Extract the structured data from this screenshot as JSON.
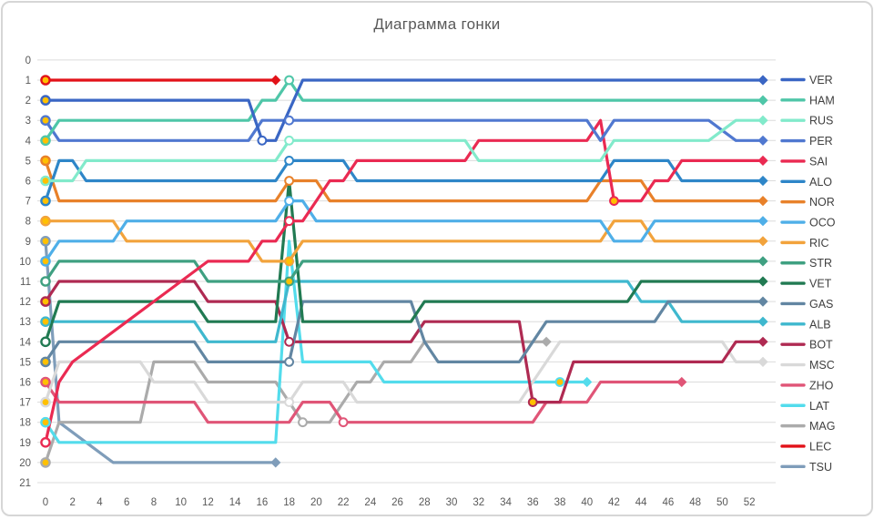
{
  "window": {
    "title": "Диаграмма гонки"
  },
  "chart_data": {
    "type": "line",
    "title": "Диаграмма гонки",
    "xlabel": "",
    "ylabel": "",
    "x_ticks": [
      0,
      2,
      4,
      6,
      8,
      10,
      12,
      14,
      16,
      18,
      20,
      22,
      24,
      26,
      28,
      30,
      32,
      34,
      36,
      38,
      40,
      42,
      44,
      46,
      48,
      50,
      52
    ],
    "y_ticks": [
      0,
      1,
      2,
      3,
      4,
      5,
      6,
      7,
      8,
      9,
      10,
      11,
      12,
      13,
      14,
      15,
      16,
      17,
      18,
      19,
      20,
      21
    ],
    "x_range": [
      0,
      53
    ],
    "y_range": [
      0,
      21
    ],
    "grid": "horizontal",
    "legend_position": "right",
    "y_inverted_meaning": "race position (1 = leader)",
    "marker_colors": {
      "tyre_yellow": "#FFC000",
      "tyre_white": "#FFFFFF"
    },
    "axis_text_color": "#595959",
    "legend_text_color": "#404040",
    "series": [
      {
        "name": "VER",
        "color": "#3A66C4",
        "start_fill": "#FFC000",
        "path": [
          [
            0,
            2
          ],
          [
            15,
            2
          ],
          [
            16,
            4
          ],
          [
            17,
            4
          ],
          [
            19,
            1
          ],
          [
            53,
            1
          ]
        ],
        "pits": [
          [
            16,
            4,
            "w"
          ]
        ],
        "end": [
          53,
          1
        ]
      },
      {
        "name": "HAM",
        "color": "#4FC6A8",
        "start_fill": "#FFC000",
        "path": [
          [
            0,
            4
          ],
          [
            1,
            3
          ],
          [
            15,
            3
          ],
          [
            16,
            2
          ],
          [
            17,
            2
          ],
          [
            18,
            1
          ],
          [
            19,
            2
          ],
          [
            53,
            2
          ]
        ],
        "pits": [
          [
            18,
            1,
            "w"
          ]
        ],
        "end": [
          53,
          2
        ]
      },
      {
        "name": "RUS",
        "color": "#82EACB",
        "start_fill": "#FFC000",
        "path": [
          [
            0,
            6
          ],
          [
            2,
            6
          ],
          [
            3,
            5
          ],
          [
            17,
            5
          ],
          [
            18,
            4
          ],
          [
            31,
            4
          ],
          [
            32,
            5
          ],
          [
            41,
            5
          ],
          [
            42,
            4
          ],
          [
            49,
            4
          ],
          [
            51,
            3
          ],
          [
            53,
            3
          ]
        ],
        "pits": [
          [
            18,
            4,
            "w"
          ]
        ],
        "end": [
          53,
          3
        ]
      },
      {
        "name": "PER",
        "color": "#5078D0",
        "start_fill": "#FFC000",
        "path": [
          [
            0,
            3
          ],
          [
            1,
            4
          ],
          [
            15,
            4
          ],
          [
            16,
            3
          ],
          [
            40,
            3
          ],
          [
            41,
            4
          ],
          [
            42,
            3
          ],
          [
            49,
            3
          ],
          [
            51,
            4
          ],
          [
            53,
            4
          ]
        ],
        "pits": [
          [
            18,
            3,
            "w"
          ]
        ],
        "end": [
          53,
          4
        ]
      },
      {
        "name": "SAI",
        "color": "#EA2A52",
        "start_fill": "#FFFFFF",
        "path": [
          [
            0,
            19
          ],
          [
            1,
            16
          ],
          [
            2,
            15
          ],
          [
            4,
            14
          ],
          [
            6,
            13
          ],
          [
            8,
            12
          ],
          [
            10,
            11
          ],
          [
            12,
            10
          ],
          [
            15,
            10
          ],
          [
            16,
            9
          ],
          [
            17,
            9
          ],
          [
            18,
            8
          ],
          [
            19,
            8
          ],
          [
            20,
            7
          ],
          [
            21,
            6
          ],
          [
            22,
            6
          ],
          [
            23,
            5
          ],
          [
            31,
            5
          ],
          [
            32,
            4
          ],
          [
            40,
            4
          ],
          [
            41,
            3
          ],
          [
            42,
            7
          ],
          [
            44,
            7
          ],
          [
            45,
            6
          ],
          [
            46,
            6
          ],
          [
            47,
            5
          ],
          [
            53,
            5
          ]
        ],
        "pits": [
          [
            18,
            8,
            "w"
          ],
          [
            42,
            7,
            "y"
          ]
        ],
        "end": [
          53,
          5
        ]
      },
      {
        "name": "ALO",
        "color": "#2E86C8",
        "start_fill": "#FFC000",
        "path": [
          [
            0,
            7
          ],
          [
            1,
            5
          ],
          [
            2,
            5
          ],
          [
            3,
            6
          ],
          [
            17,
            6
          ],
          [
            18,
            5
          ],
          [
            22,
            5
          ],
          [
            23,
            6
          ],
          [
            41,
            6
          ],
          [
            42,
            5
          ],
          [
            46,
            5
          ],
          [
            47,
            6
          ],
          [
            53,
            6
          ]
        ],
        "pits": [
          [
            18,
            5,
            "w"
          ]
        ],
        "end": [
          53,
          6
        ]
      },
      {
        "name": "NOR",
        "color": "#E8812A",
        "start_fill": "#FFC000",
        "path": [
          [
            0,
            5
          ],
          [
            1,
            7
          ],
          [
            17,
            7
          ],
          [
            18,
            6
          ],
          [
            20,
            6
          ],
          [
            21,
            7
          ],
          [
            40,
            7
          ],
          [
            41,
            6
          ],
          [
            44,
            6
          ],
          [
            45,
            7
          ],
          [
            53,
            7
          ]
        ],
        "pits": [
          [
            18,
            6,
            "w"
          ]
        ],
        "end": [
          53,
          7
        ]
      },
      {
        "name": "OCO",
        "color": "#4FAFE8",
        "start_fill": "#FFC000",
        "path": [
          [
            0,
            10
          ],
          [
            1,
            9
          ],
          [
            5,
            9
          ],
          [
            6,
            8
          ],
          [
            17,
            8
          ],
          [
            18,
            7
          ],
          [
            19,
            7
          ],
          [
            20,
            8
          ],
          [
            41,
            8
          ],
          [
            42,
            9
          ],
          [
            44,
            9
          ],
          [
            45,
            8
          ],
          [
            53,
            8
          ]
        ],
        "pits": [
          [
            18,
            7,
            "w"
          ]
        ],
        "end": [
          53,
          8
        ]
      },
      {
        "name": "RIC",
        "color": "#F2A33C",
        "start_fill": "#FFC000",
        "path": [
          [
            0,
            8
          ],
          [
            5,
            8
          ],
          [
            6,
            9
          ],
          [
            15,
            9
          ],
          [
            16,
            10
          ],
          [
            18,
            10
          ],
          [
            19,
            9
          ],
          [
            41,
            9
          ],
          [
            42,
            8
          ],
          [
            44,
            8
          ],
          [
            45,
            9
          ],
          [
            53,
            9
          ]
        ],
        "pits": [
          [
            18,
            10,
            "y"
          ]
        ],
        "end": [
          53,
          9
        ]
      },
      {
        "name": "STR",
        "color": "#3FA081",
        "start_fill": "#FFFFFF",
        "path": [
          [
            0,
            11
          ],
          [
            1,
            10
          ],
          [
            11,
            10
          ],
          [
            12,
            11
          ],
          [
            18,
            11
          ],
          [
            19,
            10
          ],
          [
            53,
            10
          ]
        ],
        "pits": [
          [
            18,
            11,
            "y"
          ]
        ],
        "end": [
          53,
          10
        ]
      },
      {
        "name": "VET",
        "color": "#217A52",
        "start_fill": "#FFFFFF",
        "path": [
          [
            0,
            14
          ],
          [
            1,
            12
          ],
          [
            11,
            12
          ],
          [
            12,
            13
          ],
          [
            17,
            13
          ],
          [
            18,
            6
          ],
          [
            19,
            13
          ],
          [
            27,
            13
          ],
          [
            28,
            12
          ],
          [
            43,
            12
          ],
          [
            44,
            11
          ],
          [
            53,
            11
          ]
        ],
        "pits": [],
        "end": [
          53,
          11
        ]
      },
      {
        "name": "GAS",
        "color": "#6286A2",
        "start_fill": "#FFC000",
        "path": [
          [
            0,
            15
          ],
          [
            1,
            14
          ],
          [
            11,
            14
          ],
          [
            12,
            15
          ],
          [
            18,
            15
          ],
          [
            19,
            12
          ],
          [
            27,
            12
          ],
          [
            28,
            14
          ],
          [
            29,
            15
          ],
          [
            35,
            15
          ],
          [
            37,
            13
          ],
          [
            45,
            13
          ],
          [
            46,
            12
          ],
          [
            53,
            12
          ]
        ],
        "pits": [
          [
            18,
            15,
            "w"
          ]
        ],
        "end": [
          53,
          12
        ]
      },
      {
        "name": "ALB",
        "color": "#3FB8CE",
        "start_fill": "#FFC000",
        "path": [
          [
            0,
            13
          ],
          [
            1,
            13
          ],
          [
            11,
            13
          ],
          [
            12,
            14
          ],
          [
            17,
            14
          ],
          [
            18,
            11
          ],
          [
            43,
            11
          ],
          [
            44,
            12
          ],
          [
            46,
            12
          ],
          [
            47,
            13
          ],
          [
            53,
            13
          ]
        ],
        "pits": [],
        "end": [
          53,
          13
        ]
      },
      {
        "name": "BOT",
        "color": "#AF2A52",
        "start_fill": "#FFC000",
        "path": [
          [
            0,
            12
          ],
          [
            1,
            11
          ],
          [
            11,
            11
          ],
          [
            12,
            12
          ],
          [
            17,
            12
          ],
          [
            18,
            14
          ],
          [
            27,
            14
          ],
          [
            28,
            13
          ],
          [
            35,
            13
          ],
          [
            36,
            17
          ],
          [
            38,
            17
          ],
          [
            39,
            15
          ],
          [
            50,
            15
          ],
          [
            51,
            14
          ],
          [
            53,
            14
          ]
        ],
        "pits": [
          [
            18,
            14,
            "w"
          ],
          [
            36,
            17,
            "y"
          ]
        ],
        "end": [
          53,
          14
        ]
      },
      {
        "name": "MSC",
        "color": "#D9D9D9",
        "start_fill": "#FFC000",
        "path": [
          [
            0,
            17
          ],
          [
            1,
            15
          ],
          [
            7,
            15
          ],
          [
            8,
            16
          ],
          [
            11,
            16
          ],
          [
            12,
            17
          ],
          [
            18,
            17
          ],
          [
            19,
            16
          ],
          [
            22,
            16
          ],
          [
            23,
            17
          ],
          [
            35,
            17
          ],
          [
            36,
            16
          ],
          [
            37,
            15
          ],
          [
            38,
            14
          ],
          [
            50,
            14
          ],
          [
            51,
            15
          ],
          [
            53,
            15
          ]
        ],
        "pits": [
          [
            18,
            17,
            "w"
          ]
        ],
        "end": [
          53,
          15
        ]
      },
      {
        "name": "ZHO",
        "color": "#E05577",
        "start_fill": "#FFC000",
        "path": [
          [
            0,
            16
          ],
          [
            1,
            17
          ],
          [
            11,
            17
          ],
          [
            12,
            18
          ],
          [
            18,
            18
          ],
          [
            19,
            17
          ],
          [
            21,
            17
          ],
          [
            22,
            18
          ],
          [
            36,
            18
          ],
          [
            37,
            17
          ],
          [
            40,
            17
          ],
          [
            41,
            16
          ],
          [
            47,
            16
          ]
        ],
        "pits": [
          [
            22,
            18,
            "w"
          ]
        ],
        "end": [
          47,
          16
        ]
      },
      {
        "name": "LAT",
        "color": "#53DCEC",
        "start_fill": "#FFC000",
        "path": [
          [
            0,
            18
          ],
          [
            1,
            19
          ],
          [
            17,
            19
          ],
          [
            18,
            9
          ],
          [
            19,
            15
          ],
          [
            24,
            15
          ],
          [
            25,
            16
          ],
          [
            39,
            16
          ],
          [
            40,
            16
          ]
        ],
        "pits": [
          [
            38,
            16,
            "y"
          ]
        ],
        "end": [
          40,
          16
        ]
      },
      {
        "name": "MAG",
        "color": "#ABABAB",
        "start_fill": "#FFC000",
        "path": [
          [
            0,
            20
          ],
          [
            1,
            18
          ],
          [
            7,
            18
          ],
          [
            8,
            15
          ],
          [
            11,
            15
          ],
          [
            12,
            16
          ],
          [
            17,
            16
          ],
          [
            19,
            18
          ],
          [
            21,
            18
          ],
          [
            22,
            17
          ],
          [
            23,
            16
          ],
          [
            24,
            16
          ],
          [
            25,
            15
          ],
          [
            27,
            15
          ],
          [
            28,
            14
          ],
          [
            37,
            14
          ]
        ],
        "pits": [
          [
            19,
            18,
            "w"
          ]
        ],
        "end": [
          37,
          14
        ]
      },
      {
        "name": "LEC",
        "color": "#E21219",
        "start_fill": "#FFC000",
        "path": [
          [
            0,
            1
          ],
          [
            17,
            1
          ]
        ],
        "pits": [],
        "end": [
          17,
          1
        ]
      },
      {
        "name": "TSU",
        "color": "#7F9DBA",
        "start_fill": "#FFC000",
        "path": [
          [
            0,
            9
          ],
          [
            1,
            18
          ],
          [
            3,
            19
          ],
          [
            5,
            20
          ],
          [
            17,
            20
          ]
        ],
        "pits": [],
        "end": [
          17,
          20
        ]
      }
    ]
  }
}
